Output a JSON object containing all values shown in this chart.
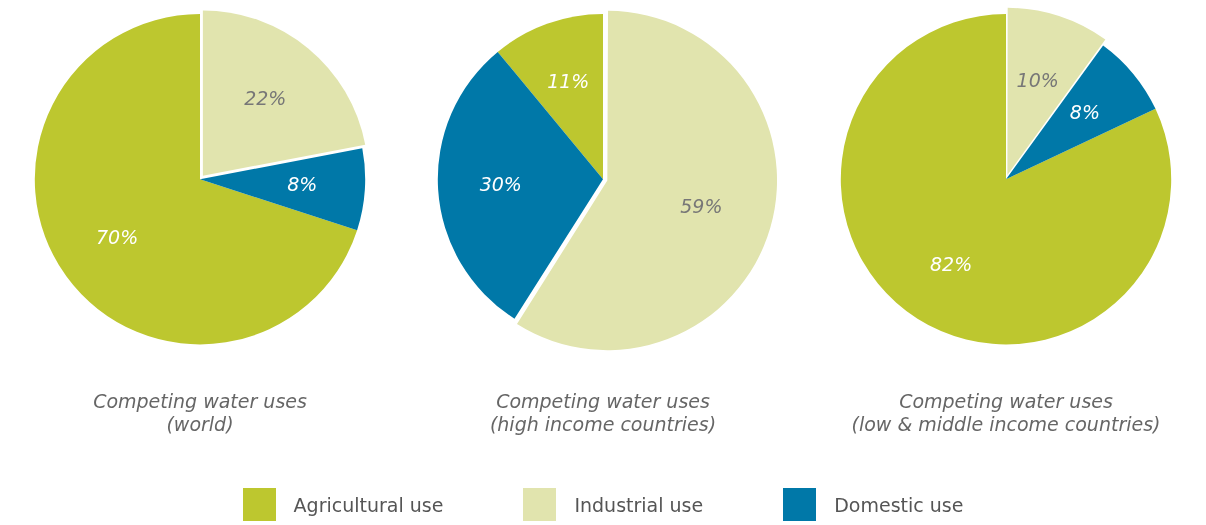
{
  "chart_data": [
    {
      "type": "pie",
      "title": "Competing water uses\n(world)",
      "categories": [
        "Agricultural use",
        "Industrial use",
        "Domestic use"
      ],
      "values": [
        70,
        22,
        8
      ],
      "colors": [
        "#bdc72f",
        "#e1e4ae",
        "#0078a8"
      ],
      "value_labels": [
        "70%",
        "22%",
        "8%"
      ],
      "legend": "bottom"
    },
    {
      "type": "pie",
      "title": "Competing water uses\n(high income countries)",
      "categories": [
        null,
        null,
        null
      ],
      "values": [
        11,
        59,
        30
      ],
      "colors": [
        "#bdc72f",
        "#e1e4ae",
        "#0078a8"
      ],
      "value_labels": [
        "11%",
        "59%",
        "30%"
      ]
    },
    {
      "type": "pie",
      "title": "Competing water uses\n(low & middle income countries)",
      "categories": [
        null,
        null,
        null
      ],
      "values": [
        82,
        10,
        8
      ],
      "colors": [
        "#bdc72f",
        "#e1e4ae",
        "#0078a8"
      ],
      "value_labels": [
        "82%",
        "10%",
        "8%"
      ]
    }
  ]
}
